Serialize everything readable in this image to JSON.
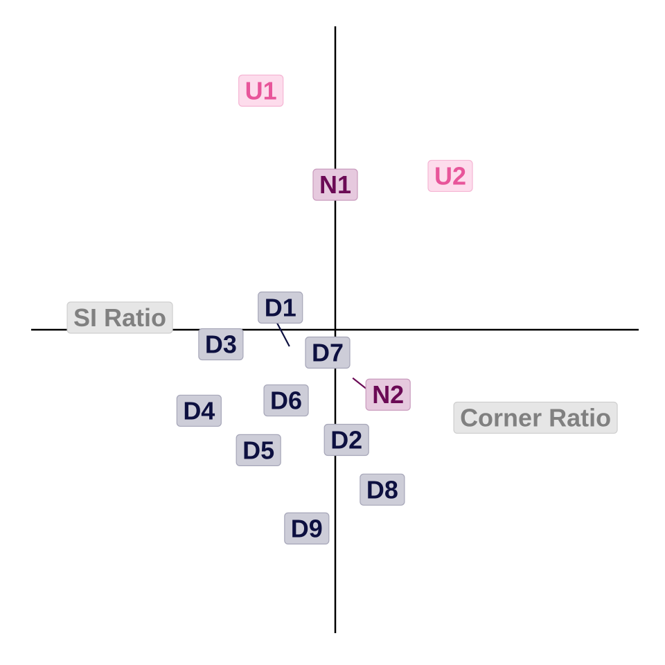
{
  "chart_data": {
    "type": "scatter",
    "title": "",
    "xlabel": "",
    "ylabel": "",
    "xlim": [
      -1.0,
      1.0
    ],
    "ylim": [
      -1.0,
      1.0
    ],
    "grid": false,
    "axis_labels": [
      {
        "text": "SI Ratio",
        "x": -0.71,
        "y": 0.04
      },
      {
        "text": "Corner Ratio",
        "x": 0.66,
        "y": -0.29
      }
    ],
    "points": [
      {
        "label": "U1",
        "x": -0.245,
        "y": 0.788,
        "group": "U"
      },
      {
        "label": "U2",
        "x": 0.379,
        "y": 0.507,
        "group": "U"
      },
      {
        "label": "N1",
        "x": 0.0,
        "y": 0.478,
        "group": "N"
      },
      {
        "label": "N2",
        "x": 0.174,
        "y": -0.214,
        "group": "N"
      },
      {
        "label": "D1",
        "x": -0.181,
        "y": 0.073,
        "group": "D"
      },
      {
        "label": "D2",
        "x": 0.037,
        "y": -0.363,
        "group": "D"
      },
      {
        "label": "D3",
        "x": -0.377,
        "y": -0.048,
        "group": "D"
      },
      {
        "label": "D4",
        "x": -0.449,
        "y": -0.267,
        "group": "D"
      },
      {
        "label": "D5",
        "x": -0.253,
        "y": -0.397,
        "group": "D"
      },
      {
        "label": "D6",
        "x": -0.162,
        "y": -0.233,
        "group": "D"
      },
      {
        "label": "D7",
        "x": -0.021,
        "y": -0.073,
        "group": "D"
      },
      {
        "label": "D8",
        "x": 0.155,
        "y": -0.527,
        "group": "D"
      },
      {
        "label": "D9",
        "x": -0.094,
        "y": -0.655,
        "group": "D"
      }
    ],
    "groups": {
      "U": {
        "text_color": "#e8559a",
        "fill": "#fddcec",
        "border": "#f5b6d4"
      },
      "N": {
        "text_color": "#6b0a55",
        "fill": "#e6c9de",
        "border": "#c99bbd"
      },
      "D": {
        "text_color": "#0d1040",
        "fill": "#cdcdd8",
        "border": "#a6a6b8"
      }
    },
    "axis_label_style": {
      "text_color": "#808080",
      "fill": "#e6e6e6",
      "border": "#cfcfcf"
    }
  }
}
